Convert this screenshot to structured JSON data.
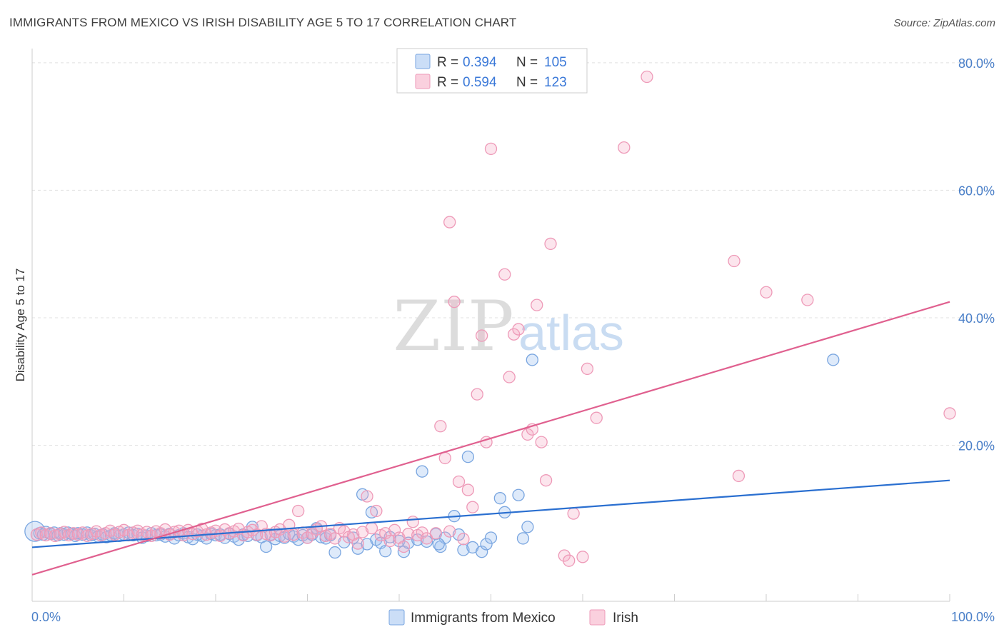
{
  "title": "IMMIGRANTS FROM MEXICO VS IRISH DISABILITY AGE 5 TO 17 CORRELATION CHART",
  "source": "Source: ZipAtlas.com",
  "watermark": {
    "zip": "ZIP",
    "atlas": "atlas"
  },
  "colors": {
    "blue": "#2a6fd0",
    "blue_fill": "rgba(160,195,240,0.35)",
    "blue_stroke": "#7aa6e0",
    "pink": "#e0608f",
    "pink_fill": "rgba(245,170,195,0.30)",
    "pink_stroke": "#ee9ab8",
    "tick": "#4a7fc8"
  },
  "legend": {
    "r_label": "R = ",
    "n_label": "N = ",
    "rows": [
      {
        "series": "blue",
        "r": "0.394",
        "n": "105"
      },
      {
        "series": "pink",
        "r": "0.594",
        "n": "123"
      }
    ]
  },
  "bottom_legend": [
    "Immigrants from Mexico",
    "Irish"
  ],
  "chart_data": {
    "type": "scatter",
    "title": "IMMIGRANTS FROM MEXICO VS IRISH DISABILITY AGE 5 TO 17 CORRELATION CHART",
    "xlabel": "",
    "ylabel": "Disability Age 5 to 17",
    "xlim": [
      0,
      100
    ],
    "ylim": [
      -2,
      82
    ],
    "x_tick_labels": [
      "0.0%",
      "100.0%"
    ],
    "y_ticks": [
      20,
      40,
      60,
      80
    ],
    "y_tick_labels": [
      "20.0%",
      "40.0%",
      "60.0%",
      "80.0%"
    ],
    "grid": "horizontal dashed",
    "series": [
      {
        "name": "Immigrants from Mexico",
        "color": "blue",
        "trend": [
          [
            0,
            4.0
          ],
          [
            100,
            14.5
          ]
        ],
        "points": [
          [
            0.3,
            6.5
          ],
          [
            0.8,
            6.2
          ],
          [
            1.2,
            6.0
          ],
          [
            1.5,
            6.4
          ],
          [
            2.0,
            6.1
          ],
          [
            2.4,
            6.3
          ],
          [
            2.8,
            5.9
          ],
          [
            3.1,
            6.2
          ],
          [
            3.5,
            6.0
          ],
          [
            3.9,
            6.3
          ],
          [
            4.3,
            6.1
          ],
          [
            4.7,
            5.8
          ],
          [
            5.0,
            6.2
          ],
          [
            5.5,
            6.0
          ],
          [
            6.0,
            6.3
          ],
          [
            6.4,
            5.9
          ],
          [
            6.8,
            6.1
          ],
          [
            7.2,
            5.7
          ],
          [
            7.7,
            6.0
          ],
          [
            8.1,
            5.6
          ],
          [
            8.6,
            5.9
          ],
          [
            9.0,
            6.2
          ],
          [
            9.5,
            5.8
          ],
          [
            10.0,
            6.0
          ],
          [
            10.5,
            6.3
          ],
          [
            11.0,
            5.9
          ],
          [
            11.5,
            6.1
          ],
          [
            12.0,
            5.5
          ],
          [
            12.5,
            5.8
          ],
          [
            13.0,
            6.2
          ],
          [
            13.5,
            5.9
          ],
          [
            14.0,
            6.0
          ],
          [
            14.5,
            5.7
          ],
          [
            15.0,
            6.1
          ],
          [
            15.5,
            5.4
          ],
          [
            16.0,
            5.9
          ],
          [
            16.5,
            6.2
          ],
          [
            17.0,
            5.6
          ],
          [
            17.5,
            5.3
          ],
          [
            18.0,
            6.0
          ],
          [
            18.5,
            5.8
          ],
          [
            19.0,
            5.4
          ],
          [
            19.5,
            6.1
          ],
          [
            20.0,
            5.9
          ],
          [
            20.5,
            6.0
          ],
          [
            21.0,
            5.5
          ],
          [
            21.5,
            6.1
          ],
          [
            22.0,
            5.7
          ],
          [
            22.5,
            5.2
          ],
          [
            23.0,
            6.0
          ],
          [
            23.5,
            5.8
          ],
          [
            24.0,
            7.2
          ],
          [
            24.5,
            5.9
          ],
          [
            25.0,
            5.6
          ],
          [
            25.5,
            4.1
          ],
          [
            26.0,
            6.0
          ],
          [
            26.5,
            5.3
          ],
          [
            27.0,
            5.8
          ],
          [
            27.5,
            5.5
          ],
          [
            28.0,
            6.1
          ],
          [
            28.5,
            5.7
          ],
          [
            29.0,
            5.2
          ],
          [
            29.5,
            5.9
          ],
          [
            30.0,
            5.5
          ],
          [
            30.5,
            6.0
          ],
          [
            31.0,
            7.0
          ],
          [
            31.5,
            5.6
          ],
          [
            32.0,
            5.4
          ],
          [
            32.5,
            5.9
          ],
          [
            33.0,
            3.2
          ],
          [
            34.0,
            4.8
          ],
          [
            35.0,
            5.5
          ],
          [
            35.5,
            3.8
          ],
          [
            36.0,
            12.3
          ],
          [
            36.5,
            4.5
          ],
          [
            37.0,
            9.5
          ],
          [
            37.5,
            5.2
          ],
          [
            38.0,
            4.7
          ],
          [
            38.5,
            3.4
          ],
          [
            39.0,
            5.6
          ],
          [
            40.0,
            5.0
          ],
          [
            40.5,
            3.3
          ],
          [
            41.0,
            4.7
          ],
          [
            42.0,
            5.2
          ],
          [
            42.5,
            15.9
          ],
          [
            43.0,
            4.9
          ],
          [
            44.0,
            6.1
          ],
          [
            44.5,
            4.1
          ],
          [
            45.0,
            5.5
          ],
          [
            46.0,
            8.9
          ],
          [
            46.5,
            6.0
          ],
          [
            47.0,
            3.6
          ],
          [
            47.5,
            18.2
          ],
          [
            48.0,
            4.0
          ],
          [
            49.0,
            3.3
          ],
          [
            49.5,
            4.5
          ],
          [
            50.0,
            5.5
          ],
          [
            51.0,
            11.7
          ],
          [
            51.5,
            9.5
          ],
          [
            53.0,
            12.2
          ],
          [
            53.5,
            5.4
          ],
          [
            54.0,
            7.2
          ],
          [
            54.5,
            33.4
          ],
          [
            87.3,
            33.4
          ],
          [
            44.3,
            4.5
          ]
        ]
      },
      {
        "name": "Irish",
        "color": "pink",
        "trend": [
          [
            0,
            -0.3
          ],
          [
            100,
            42.5
          ]
        ],
        "points": [
          [
            0.5,
            6.0
          ],
          [
            1.0,
            6.3
          ],
          [
            1.5,
            5.9
          ],
          [
            2.0,
            6.2
          ],
          [
            2.5,
            5.8
          ],
          [
            3.0,
            6.1
          ],
          [
            3.5,
            6.4
          ],
          [
            4.0,
            5.9
          ],
          [
            4.5,
            6.2
          ],
          [
            5.0,
            6.0
          ],
          [
            5.5,
            6.3
          ],
          [
            6.0,
            5.8
          ],
          [
            6.5,
            6.1
          ],
          [
            7.0,
            6.5
          ],
          [
            7.5,
            5.9
          ],
          [
            8.0,
            6.2
          ],
          [
            8.5,
            6.6
          ],
          [
            9.0,
            6.0
          ],
          [
            9.5,
            6.4
          ],
          [
            10.0,
            6.7
          ],
          [
            10.5,
            5.9
          ],
          [
            11.0,
            6.3
          ],
          [
            11.5,
            6.6
          ],
          [
            12.0,
            6.0
          ],
          [
            12.5,
            6.4
          ],
          [
            13.0,
            5.8
          ],
          [
            13.5,
            6.5
          ],
          [
            14.0,
            6.2
          ],
          [
            14.5,
            6.8
          ],
          [
            15.0,
            6.0
          ],
          [
            15.5,
            6.4
          ],
          [
            16.0,
            6.6
          ],
          [
            16.5,
            5.9
          ],
          [
            17.0,
            6.7
          ],
          [
            17.5,
            6.1
          ],
          [
            18.0,
            6.5
          ],
          [
            18.5,
            6.9
          ],
          [
            19.0,
            6.0
          ],
          [
            19.5,
            6.3
          ],
          [
            20.0,
            6.6
          ],
          [
            20.5,
            5.8
          ],
          [
            21.0,
            6.8
          ],
          [
            21.5,
            6.2
          ],
          [
            22.0,
            6.5
          ],
          [
            22.5,
            6.9
          ],
          [
            23.0,
            5.9
          ],
          [
            23.5,
            6.4
          ],
          [
            24.0,
            6.7
          ],
          [
            24.5,
            6.0
          ],
          [
            25.0,
            7.3
          ],
          [
            25.5,
            6.1
          ],
          [
            26.0,
            5.9
          ],
          [
            26.5,
            6.4
          ],
          [
            27.0,
            6.8
          ],
          [
            27.5,
            5.7
          ],
          [
            28.0,
            7.5
          ],
          [
            28.5,
            6.0
          ],
          [
            29.0,
            9.7
          ],
          [
            29.5,
            6.3
          ],
          [
            30.0,
            5.5
          ],
          [
            30.5,
            6.2
          ],
          [
            31.0,
            6.8
          ],
          [
            31.5,
            7.3
          ],
          [
            32.0,
            5.8
          ],
          [
            32.5,
            6.1
          ],
          [
            33.0,
            5.4
          ],
          [
            33.5,
            7.0
          ],
          [
            34.0,
            6.5
          ],
          [
            34.5,
            5.6
          ],
          [
            35.0,
            6.0
          ],
          [
            35.5,
            4.6
          ],
          [
            36.0,
            6.4
          ],
          [
            36.5,
            12.0
          ],
          [
            37.0,
            7.0
          ],
          [
            37.5,
            9.7
          ],
          [
            38.0,
            5.9
          ],
          [
            38.5,
            6.2
          ],
          [
            39.0,
            5.0
          ],
          [
            39.5,
            6.7
          ],
          [
            40.0,
            5.5
          ],
          [
            40.5,
            4.1
          ],
          [
            41.0,
            6.1
          ],
          [
            41.5,
            8.0
          ],
          [
            42.0,
            5.9
          ],
          [
            42.5,
            6.3
          ],
          [
            43.0,
            5.4
          ],
          [
            44.0,
            6.2
          ],
          [
            44.5,
            23.0
          ],
          [
            45.0,
            18.0
          ],
          [
            45.5,
            6.5
          ],
          [
            46.0,
            42.5
          ],
          [
            46.5,
            14.3
          ],
          [
            47.0,
            5.3
          ],
          [
            47.5,
            13.0
          ],
          [
            48.0,
            10.3
          ],
          [
            48.5,
            28.0
          ],
          [
            49.0,
            37.2
          ],
          [
            49.5,
            20.5
          ],
          [
            50.0,
            66.5
          ],
          [
            52.0,
            30.7
          ],
          [
            51.5,
            46.8
          ],
          [
            52.5,
            37.4
          ],
          [
            53.0,
            38.2
          ],
          [
            54.0,
            21.7
          ],
          [
            54.5,
            22.5
          ],
          [
            55.0,
            42.0
          ],
          [
            55.5,
            20.5
          ],
          [
            56.0,
            14.5
          ],
          [
            56.5,
            51.6
          ],
          [
            58.0,
            2.7
          ],
          [
            58.5,
            1.9
          ],
          [
            59.0,
            9.3
          ],
          [
            60.0,
            2.5
          ],
          [
            60.5,
            32.0
          ],
          [
            61.5,
            24.3
          ],
          [
            64.5,
            66.7
          ],
          [
            67.0,
            77.8
          ],
          [
            76.5,
            48.9
          ],
          [
            77.0,
            15.2
          ],
          [
            80.0,
            44.0
          ],
          [
            84.5,
            42.8
          ],
          [
            100.0,
            25.0
          ],
          [
            45.5,
            55.0
          ]
        ]
      }
    ]
  }
}
